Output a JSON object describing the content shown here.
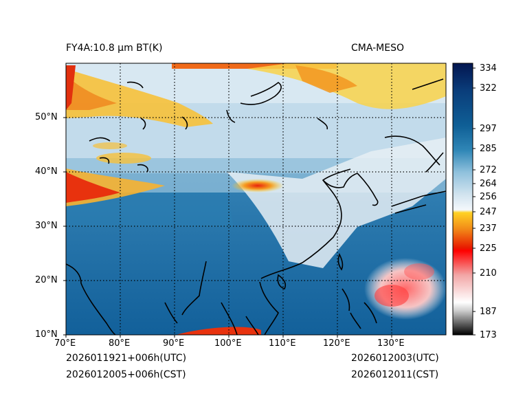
{
  "header": {
    "title_left": "FY4A:10.8 µm BT(K)",
    "title_right": "CMA-MESO"
  },
  "footer": {
    "init_utc": "2026011921+006h(UTC)",
    "init_cst": "2026012005+006h(CST)",
    "valid_utc": "2026012003(UTC)",
    "valid_cst": "2026012011(CST)"
  },
  "chart_data": {
    "type": "heatmap",
    "variable": "10.8 µm brightness temperature",
    "units": "K",
    "projection": "lat-lon",
    "lon_range": [
      70,
      140
    ],
    "lat_range": [
      10,
      60
    ],
    "x_tick_labels": [
      "70°E",
      "80°E",
      "90°E",
      "100°E",
      "110°E",
      "120°E",
      "130°E"
    ],
    "x_tick_values": [
      70,
      80,
      90,
      100,
      110,
      120,
      130
    ],
    "y_tick_labels": [
      "10°N",
      "20°N",
      "30°N",
      "40°N",
      "50°N"
    ],
    "y_tick_values": [
      10,
      20,
      30,
      40,
      50
    ],
    "gridlines": "dotted",
    "colorbar": {
      "range": [
        173,
        336
      ],
      "tick_labels": [
        "173",
        "187",
        "210",
        "225",
        "237",
        "247",
        "256",
        "264",
        "272",
        "285",
        "297",
        "322",
        "334"
      ],
      "tick_values": [
        173,
        187,
        210,
        225,
        237,
        247,
        256,
        264,
        272,
        285,
        297,
        322,
        334
      ]
    },
    "features": [
      {
        "name": "cold cloud band",
        "lon": [
          70,
          95
        ],
        "lat": [
          52,
          58
        ],
        "bt_k": 237
      },
      {
        "name": "cold cloud streaks",
        "lon": [
          70,
          92
        ],
        "lat": [
          35,
          42
        ],
        "bt_k": 230
      },
      {
        "name": "cloud patch",
        "lon": [
          103,
          110
        ],
        "lat": [
          36,
          40
        ],
        "bt_k": 240
      },
      {
        "name": "deep convection cluster",
        "lon": [
          126,
          140
        ],
        "lat": [
          12,
          24
        ],
        "bt_k": 215
      },
      {
        "name": "northern cold top",
        "lon": [
          115,
          140
        ],
        "lat": [
          50,
          60
        ],
        "bt_k": 245
      }
    ]
  }
}
